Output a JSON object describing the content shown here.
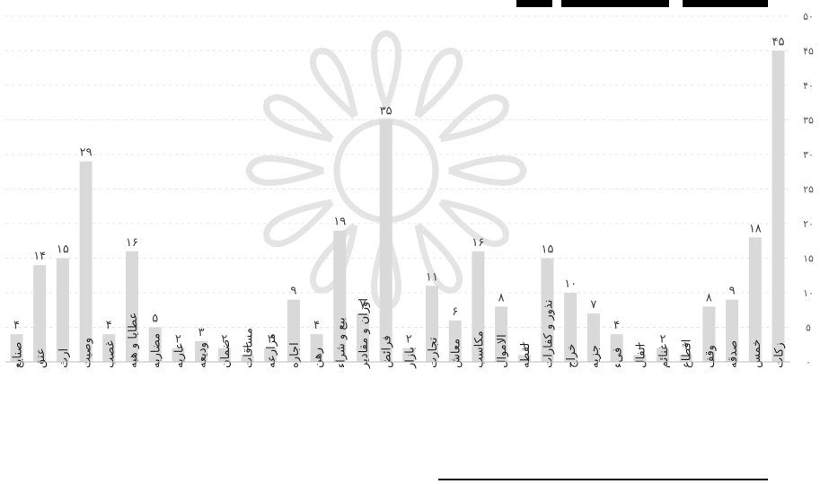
{
  "chart_data": {
    "type": "bar",
    "title": "",
    "xlabel": "",
    "ylabel": "",
    "ylim": [
      0,
      50
    ],
    "yticks": [
      "٠",
      "۵",
      "١٠",
      "١۵",
      "٢٠",
      "٢۵",
      "٣٠",
      "٣۵",
      "۴٠",
      "۴۵",
      "۵٠"
    ],
    "grid": true,
    "categories": [
      "زکات",
      "خمس",
      "صدقه",
      "وقف",
      "اقطاع",
      "غنائم",
      "انفال",
      "فیء",
      "جزیه",
      "خراج",
      "نذور و کفارات",
      "لقطه",
      "الاموال",
      "مکاسب",
      "معاش",
      "تجارت",
      "بازار",
      "فرائض",
      "اوزان و مقادیر",
      "بیع و شراء",
      "رهن",
      "اجاره",
      "مزارعه",
      "مساقات",
      "ضمان",
      "ودیعه",
      "عاریه",
      "مضاربه",
      "عطایا و هبه",
      "غصب",
      "وصیت",
      "ارث",
      "عتق",
      "صنایع"
    ],
    "values": [
      45,
      18,
      9,
      8,
      1,
      2,
      1,
      4,
      7,
      10,
      15,
      1,
      8,
      16,
      6,
      11,
      2,
      35,
      7,
      19,
      4,
      9,
      2,
      1,
      2,
      3,
      2,
      5,
      16,
      4,
      29,
      15,
      14,
      4
    ],
    "value_labels": [
      "۴۵",
      "١٨",
      "٩",
      "٨",
      "١",
      "٢",
      "١",
      "۴",
      "٧",
      "١٠",
      "١۵",
      "١",
      "٨",
      "١۶",
      "۶",
      "١١",
      "٢",
      "٣۵",
      "٧",
      "١٩",
      "۴",
      "٩",
      "٢",
      "١",
      "٢",
      "٣",
      "٢",
      "۵",
      "١۶",
      "۴",
      "٢٩",
      "١۵",
      "١۴",
      "۴"
    ],
    "bar_color": "#d9d9d9"
  }
}
